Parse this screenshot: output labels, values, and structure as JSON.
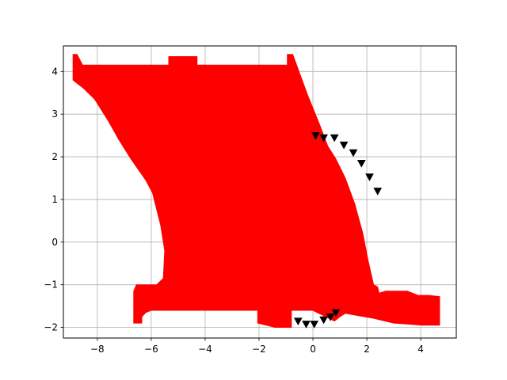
{
  "chart_data": {
    "type": "scatter",
    "grid": true,
    "xlim": [
      -9.26,
      5.32
    ],
    "ylim": [
      -2.25,
      4.6
    ],
    "x_ticks": [
      -8,
      -6,
      -4,
      -2,
      0,
      2,
      4
    ],
    "y_ticks": [
      -2,
      -1,
      0,
      1,
      2,
      3,
      4
    ],
    "x_tick_labels": [
      "−8",
      "−6",
      "−4",
      "−2",
      "0",
      "2",
      "4"
    ],
    "y_tick_labels": [
      "−2",
      "−1",
      "0",
      "1",
      "2",
      "3",
      "4"
    ],
    "series": [
      {
        "marker": "filled-region",
        "color": "#ff0000",
        "outline": [
          [
            -8.9,
            4.4
          ],
          [
            -8.75,
            4.4
          ],
          [
            -8.55,
            4.15
          ],
          [
            -5.35,
            4.15
          ],
          [
            -5.35,
            4.35
          ],
          [
            -4.3,
            4.35
          ],
          [
            -4.3,
            4.15
          ],
          [
            -0.95,
            4.15
          ],
          [
            -0.95,
            4.4
          ],
          [
            -0.75,
            4.4
          ],
          [
            -0.2,
            3.45
          ],
          [
            0.25,
            2.75
          ],
          [
            0.55,
            2.25
          ],
          [
            0.85,
            1.95
          ],
          [
            1.2,
            1.5
          ],
          [
            1.55,
            0.9
          ],
          [
            1.85,
            0.2
          ],
          [
            2.05,
            -0.45
          ],
          [
            2.25,
            -1.0
          ],
          [
            2.4,
            -1.05
          ],
          [
            2.45,
            -1.2
          ],
          [
            2.7,
            -1.15
          ],
          [
            3.0,
            -1.15
          ],
          [
            3.5,
            -1.15
          ],
          [
            3.9,
            -1.25
          ],
          [
            4.3,
            -1.25
          ],
          [
            4.7,
            -1.28
          ],
          [
            4.7,
            -1.95
          ],
          [
            4.05,
            -1.95
          ],
          [
            3.0,
            -1.9
          ],
          [
            2.2,
            -1.78
          ],
          [
            1.2,
            -1.67
          ],
          [
            1.0,
            -1.75
          ],
          [
            0.8,
            -1.85
          ],
          [
            0.0,
            -1.6
          ],
          [
            -0.5,
            -1.6
          ],
          [
            -0.8,
            -1.6
          ],
          [
            -0.8,
            -2.0
          ],
          [
            -1.4,
            -2.0
          ],
          [
            -2.05,
            -1.9
          ],
          [
            -2.05,
            -1.6
          ],
          [
            -3.6,
            -1.6
          ],
          [
            -5.0,
            -1.6
          ],
          [
            -6.0,
            -1.6
          ],
          [
            -6.2,
            -1.65
          ],
          [
            -6.35,
            -1.75
          ],
          [
            -6.35,
            -1.9
          ],
          [
            -6.65,
            -1.9
          ],
          [
            -6.65,
            -1.15
          ],
          [
            -6.55,
            -1.0
          ],
          [
            -5.8,
            -1.0
          ],
          [
            -5.55,
            -0.85
          ],
          [
            -5.5,
            -0.2
          ],
          [
            -5.65,
            0.4
          ],
          [
            -5.95,
            1.15
          ],
          [
            -6.2,
            1.45
          ],
          [
            -6.75,
            1.95
          ],
          [
            -7.2,
            2.4
          ],
          [
            -7.6,
            2.85
          ],
          [
            -8.1,
            3.35
          ],
          [
            -8.5,
            3.6
          ],
          [
            -8.9,
            3.8
          ]
        ]
      },
      {
        "marker": "triangle-down",
        "color": "#000000",
        "x": [
          -0.55,
          -0.25,
          0.05,
          0.4,
          0.65,
          0.85,
          0.1,
          0.4,
          0.8,
          1.15,
          1.5,
          1.8,
          2.1,
          2.4
        ],
        "y": [
          -1.85,
          -1.92,
          -1.92,
          -1.82,
          -1.75,
          -1.65,
          2.5,
          2.45,
          2.45,
          2.28,
          2.1,
          1.85,
          1.53,
          1.2
        ]
      }
    ]
  }
}
